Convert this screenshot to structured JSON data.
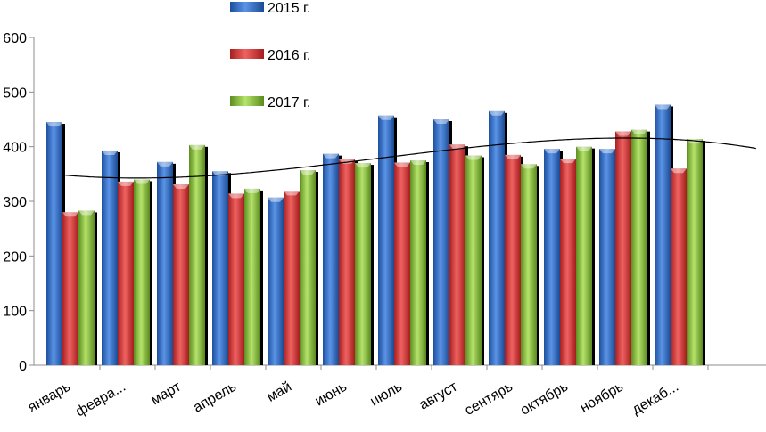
{
  "chart_data": {
    "type": "bar",
    "title": "",
    "xlabel": "",
    "ylabel": "",
    "ylim": [
      0,
      600
    ],
    "yticks": [
      0,
      100,
      200,
      300,
      400,
      500,
      600
    ],
    "categories": [
      "январь",
      "февра...",
      "март",
      "апрель",
      "май",
      "июнь",
      "июль",
      "август",
      "сентярь",
      "октябрь",
      "ноябрь",
      "декаб..."
    ],
    "series": [
      {
        "name": "2015 г.",
        "color": "#2f6cc8",
        "values": [
          445,
          393,
          372,
          355,
          307,
          387,
          457,
          450,
          465,
          396,
          396,
          477
        ]
      },
      {
        "name": "2016 г.",
        "color": "#d93636",
        "values": [
          280,
          336,
          331,
          314,
          319,
          377,
          371,
          404,
          385,
          378,
          428,
          360
        ]
      },
      {
        "name": "2017 г.",
        "color": "#8cc63f",
        "values": [
          283,
          340,
          403,
          323,
          357,
          370,
          375,
          384,
          368,
          400,
          431,
          414
        ]
      }
    ],
    "trendline": {
      "type": "polynomial",
      "color": "#000000"
    },
    "legend_position": "top",
    "grid": false
  }
}
